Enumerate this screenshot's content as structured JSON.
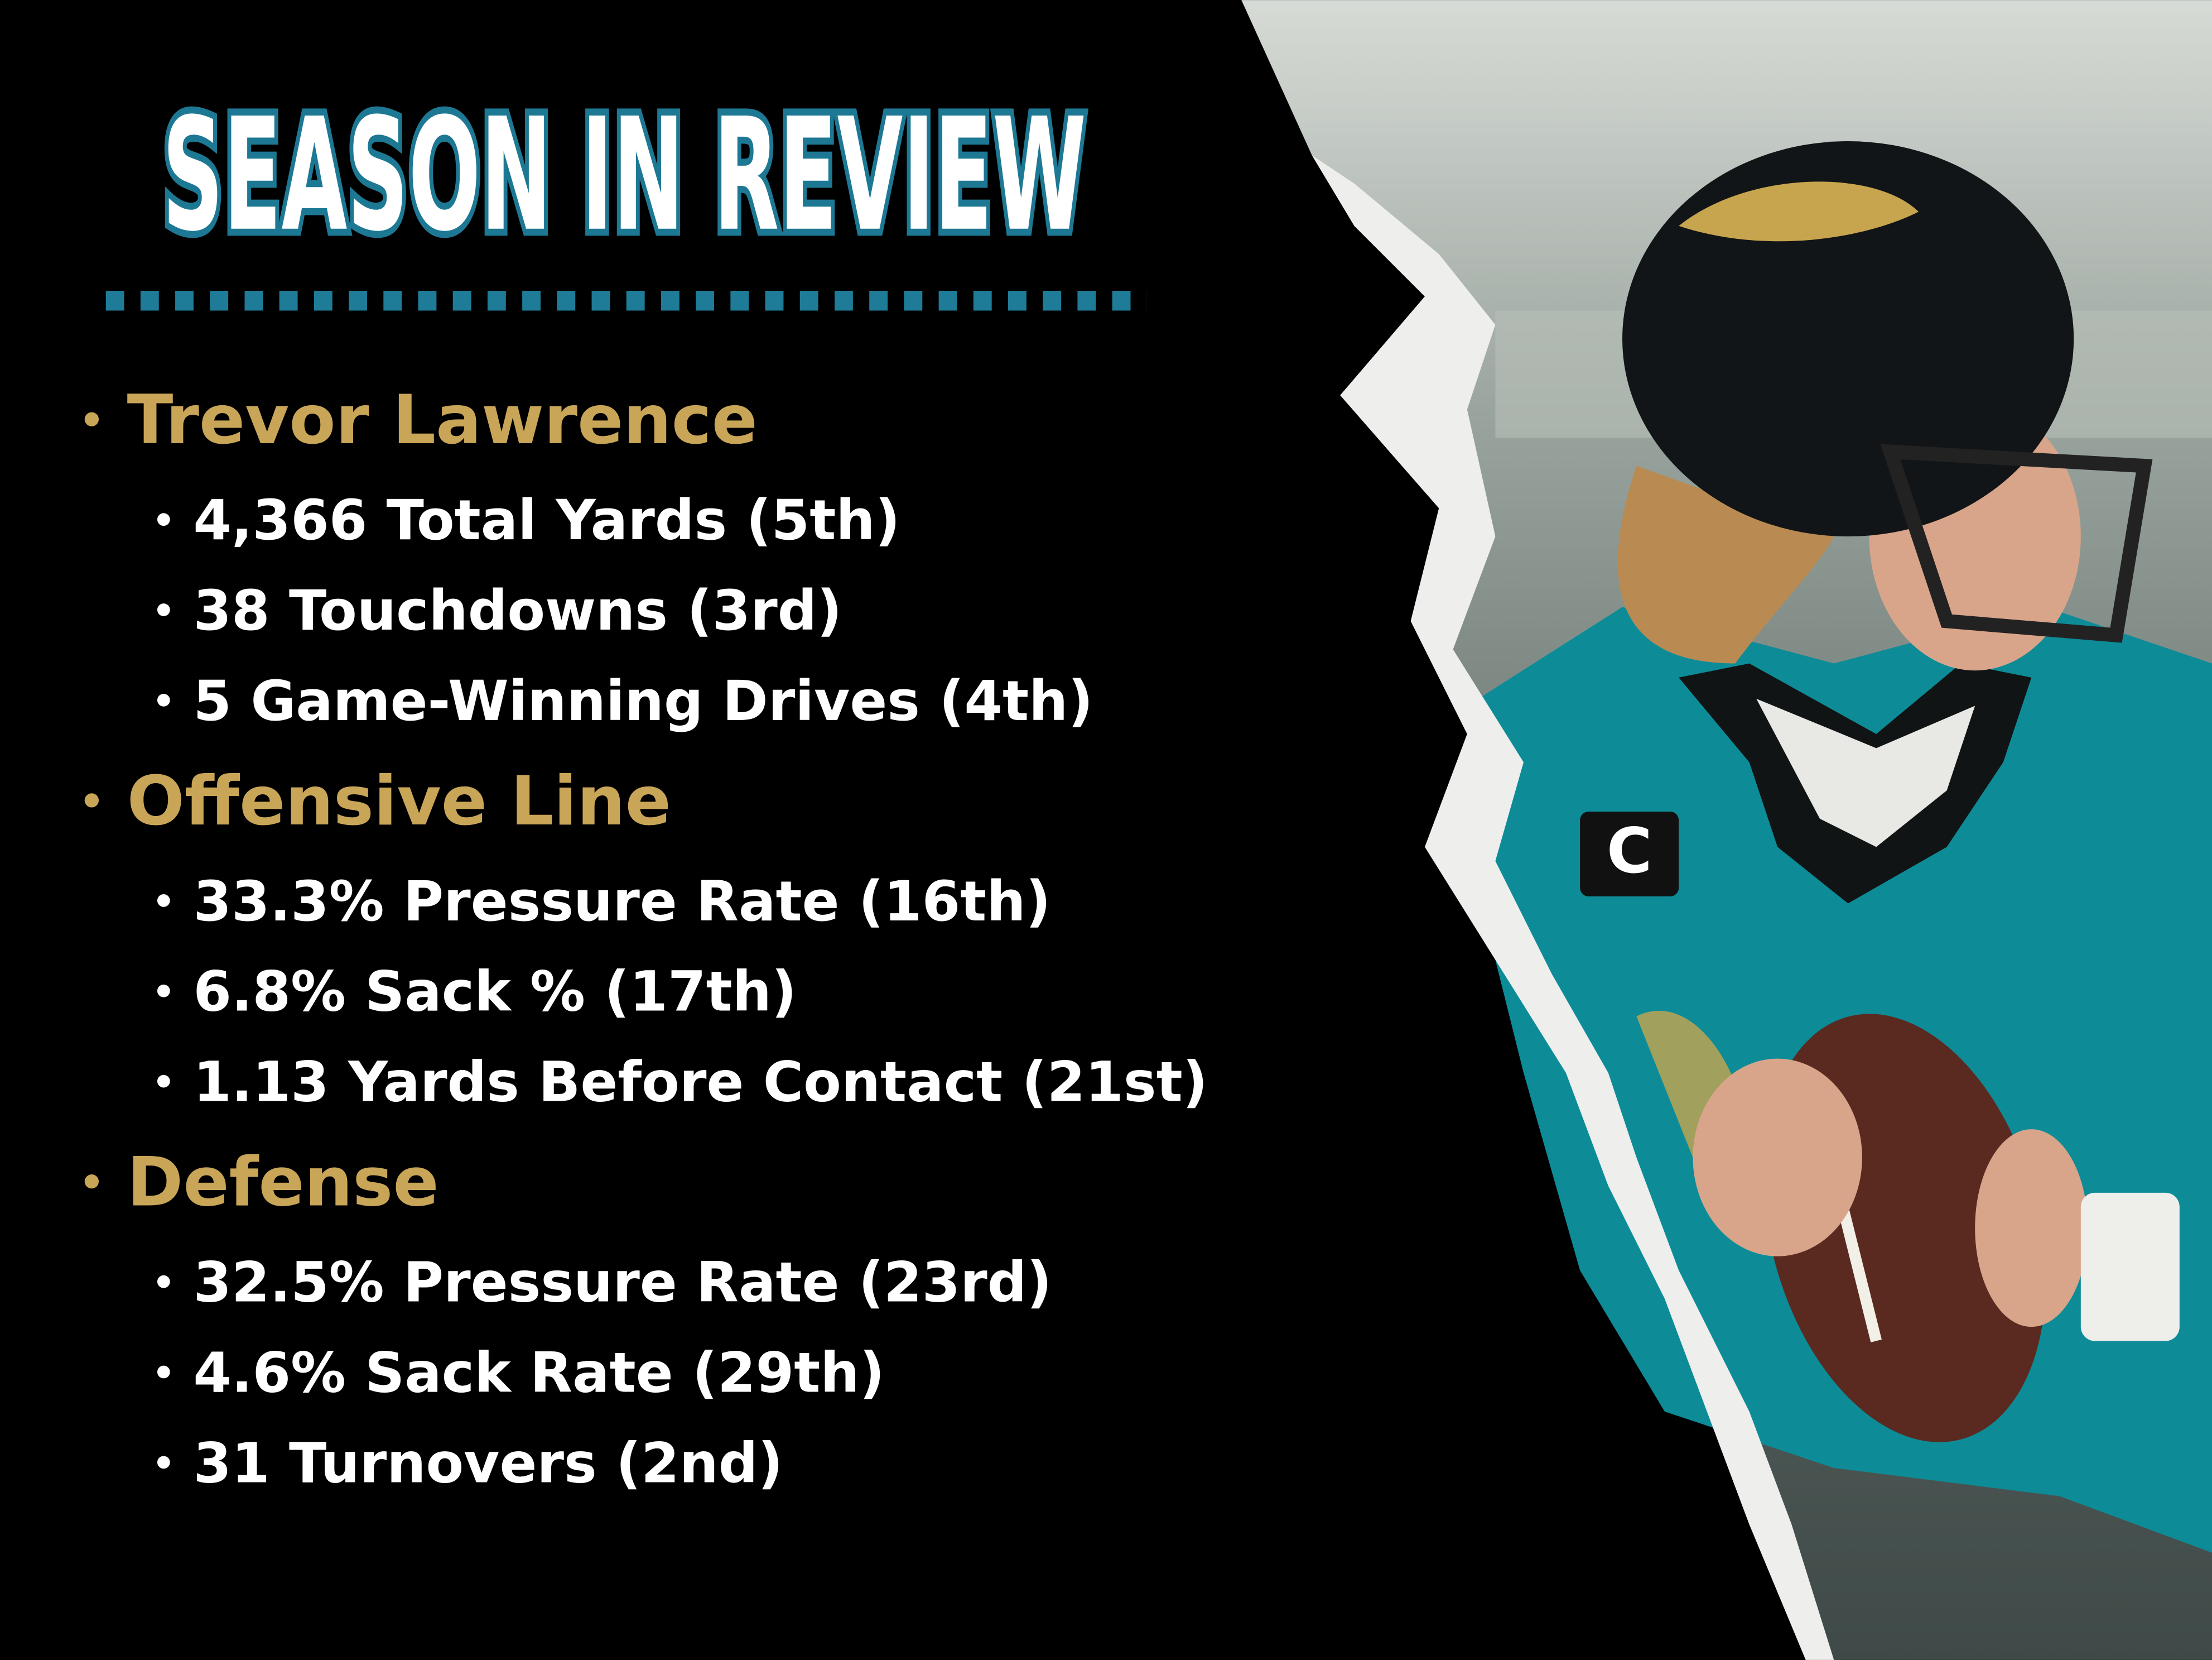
{
  "title": "SEASON IN REVIEW",
  "sections": [
    {
      "heading": "Trevor Lawrence",
      "items": [
        "4,366 Total Yards (5th)",
        "38 Touchdowns (3rd)",
        "5 Game-Winning Drives (4th)"
      ]
    },
    {
      "heading": "Offensive Line",
      "items": [
        "33.3% Pressure Rate (16th)",
        "6.8% Sack % (17th)",
        "1.13 Yards Before Contact (21st)"
      ]
    },
    {
      "heading": "Defense",
      "items": [
        "32.5% Pressure Rate (23rd)",
        "4.6% Sack Rate (29th)",
        "31 Turnovers (2nd)"
      ]
    }
  ]
}
